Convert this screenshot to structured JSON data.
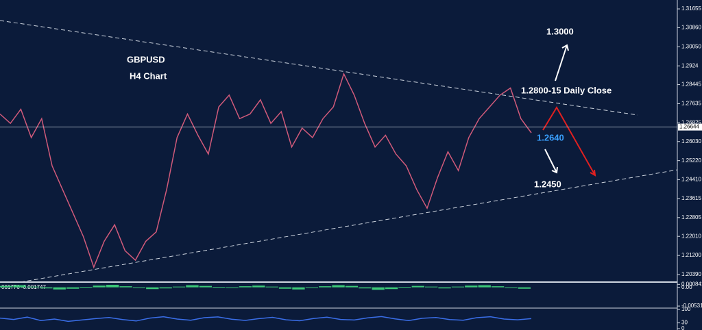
{
  "chart_data": [
    {
      "type": "line",
      "title": "GBPUSD",
      "subtitle": "H4 Chart",
      "series": [
        {
          "name": "GBPUSD",
          "color": "#d05a7a",
          "values": [
            1.272,
            1.268,
            1.274,
            1.262,
            1.27,
            1.25,
            1.24,
            1.23,
            1.22,
            1.207,
            1.218,
            1.225,
            1.214,
            1.21,
            1.218,
            1.222,
            1.24,
            1.262,
            1.272,
            1.263,
            1.255,
            1.275,
            1.28,
            1.27,
            1.272,
            1.278,
            1.268,
            1.273,
            1.258,
            1.266,
            1.262,
            1.27,
            1.275,
            1.289,
            1.28,
            1.268,
            1.258,
            1.263,
            1.255,
            1.25,
            1.24,
            1.232,
            1.245,
            1.256,
            1.248,
            1.262,
            1.27,
            1.275,
            1.28,
            1.283,
            1.27,
            1.264
          ]
        }
      ],
      "current_price": 1.26644,
      "annotations": [
        "1.3000",
        "1.2800-15 Daily Close",
        "1.2640",
        "1.2450"
      ],
      "ylim": [
        1.201,
        1.32033
      ],
      "yticks": [
        1.31655,
        {
          "value": 1.3086,
          "label": "1.30860"
        },
        {
          "value": 1.3005,
          "label": "1.30050"
        },
        1.2924,
        1.28445,
        1.27635,
        1.26825,
        {
          "value": 1.2603,
          "label": "1.26030"
        },
        {
          "value": 1.2522,
          "label": "1.25220"
        },
        {
          "value": 1.2441,
          "label": "1.24410"
        },
        1.23615,
        1.22805,
        {
          "value": 1.2201,
          "label": "1.22010"
        },
        {
          "value": 1.212,
          "label": "1.21200"
        },
        {
          "value": 1.2039,
          "label": "1.20390"
        }
      ]
    },
    {
      "type": "bar",
      "title": "001776 -0.001747",
      "color": "#3cc878",
      "values": [
        0.0004,
        0.0006,
        0.0002,
        -0.0003,
        -0.0006,
        -0.0004,
        0.0001,
        0.0005,
        0.0007,
        0.0003,
        -0.0002,
        -0.0005,
        -0.0003,
        0.0002,
        0.0006,
        0.0004,
        0.0001,
        -0.0002,
        0.0003,
        0.0005,
        0.0002,
        -0.0004,
        -0.0006,
        -0.0002,
        0.0003,
        0.0006,
        0.0004,
        -0.0003,
        -0.0007,
        -0.0005,
        0.0001,
        0.0004,
        0.0002,
        -0.0003,
        0.0002,
        0.0005,
        0.0006,
        0.0003,
        -0.0002,
        -0.0004
      ],
      "ylim": [
        -0.0055,
        0.0011
      ],
      "yticks": [
        0.000841,
        {
          "value": 0,
          "label": "0.00"
        },
        -0.005318
      ]
    },
    {
      "type": "line",
      "color": "#3a6ee8",
      "values": [
        55,
        48,
        60,
        42,
        50,
        38,
        45,
        52,
        58,
        47,
        40,
        55,
        62,
        50,
        44,
        57,
        61,
        49,
        43,
        52,
        59,
        46,
        41,
        53,
        60,
        48,
        45,
        56,
        63,
        51,
        42,
        54,
        58,
        47,
        44,
        57,
        62,
        50,
        46,
        52
      ],
      "ylim": [
        0,
        100
      ],
      "yticks": [
        100,
        30,
        0
      ]
    }
  ]
}
